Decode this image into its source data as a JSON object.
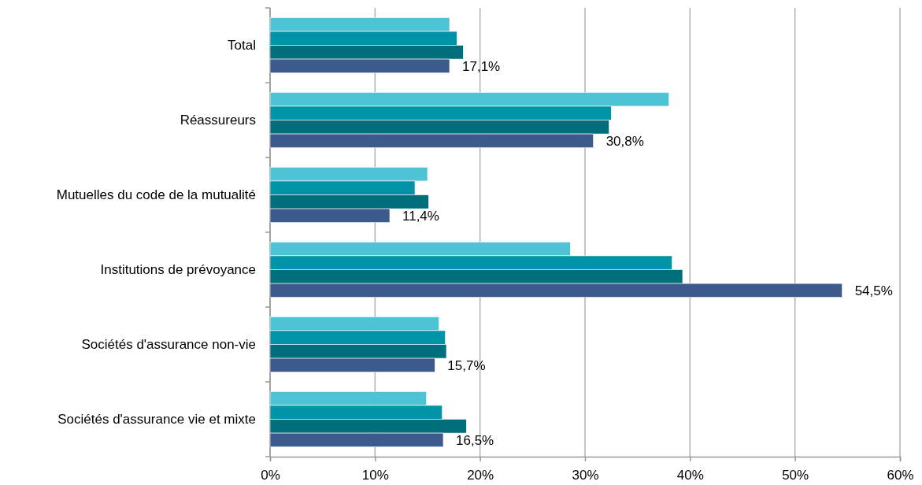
{
  "chart_data": {
    "type": "bar",
    "orientation": "horizontal",
    "categories": [
      "Total",
      "Réassureurs",
      "Mutuelles du code de la mutualité",
      "Institutions de prévoyance",
      "Sociétés d'assurance non-vie",
      "Sociétés d'assurance vie et mixte"
    ],
    "series": [
      {
        "color": "#4fc3d6",
        "values": [
          17.1,
          38.0,
          15.0,
          28.6,
          16.1,
          14.9
        ]
      },
      {
        "color": "#0093a8",
        "values": [
          17.8,
          32.5,
          13.8,
          38.3,
          16.7,
          16.4
        ]
      },
      {
        "color": "#006e7b",
        "values": [
          18.4,
          32.3,
          15.1,
          39.3,
          16.8,
          18.7
        ]
      },
      {
        "color": "#3c5a8c",
        "values": [
          17.1,
          30.8,
          11.4,
          54.5,
          15.7,
          16.5
        ],
        "value_labels": [
          "17,1%",
          "30,8%",
          "11,4%",
          "54,5%",
          "15,7%",
          "16,5%"
        ]
      }
    ],
    "xlim": [
      0,
      60
    ],
    "xticks": [
      {
        "value": 0,
        "label": "0%"
      },
      {
        "value": 10,
        "label": "10%"
      },
      {
        "value": 20,
        "label": "20%"
      },
      {
        "value": 30,
        "label": "30%"
      },
      {
        "value": 40,
        "label": "40%"
      },
      {
        "value": 50,
        "label": "50%"
      },
      {
        "value": 60,
        "label": "60%"
      }
    ],
    "grid": "x"
  }
}
